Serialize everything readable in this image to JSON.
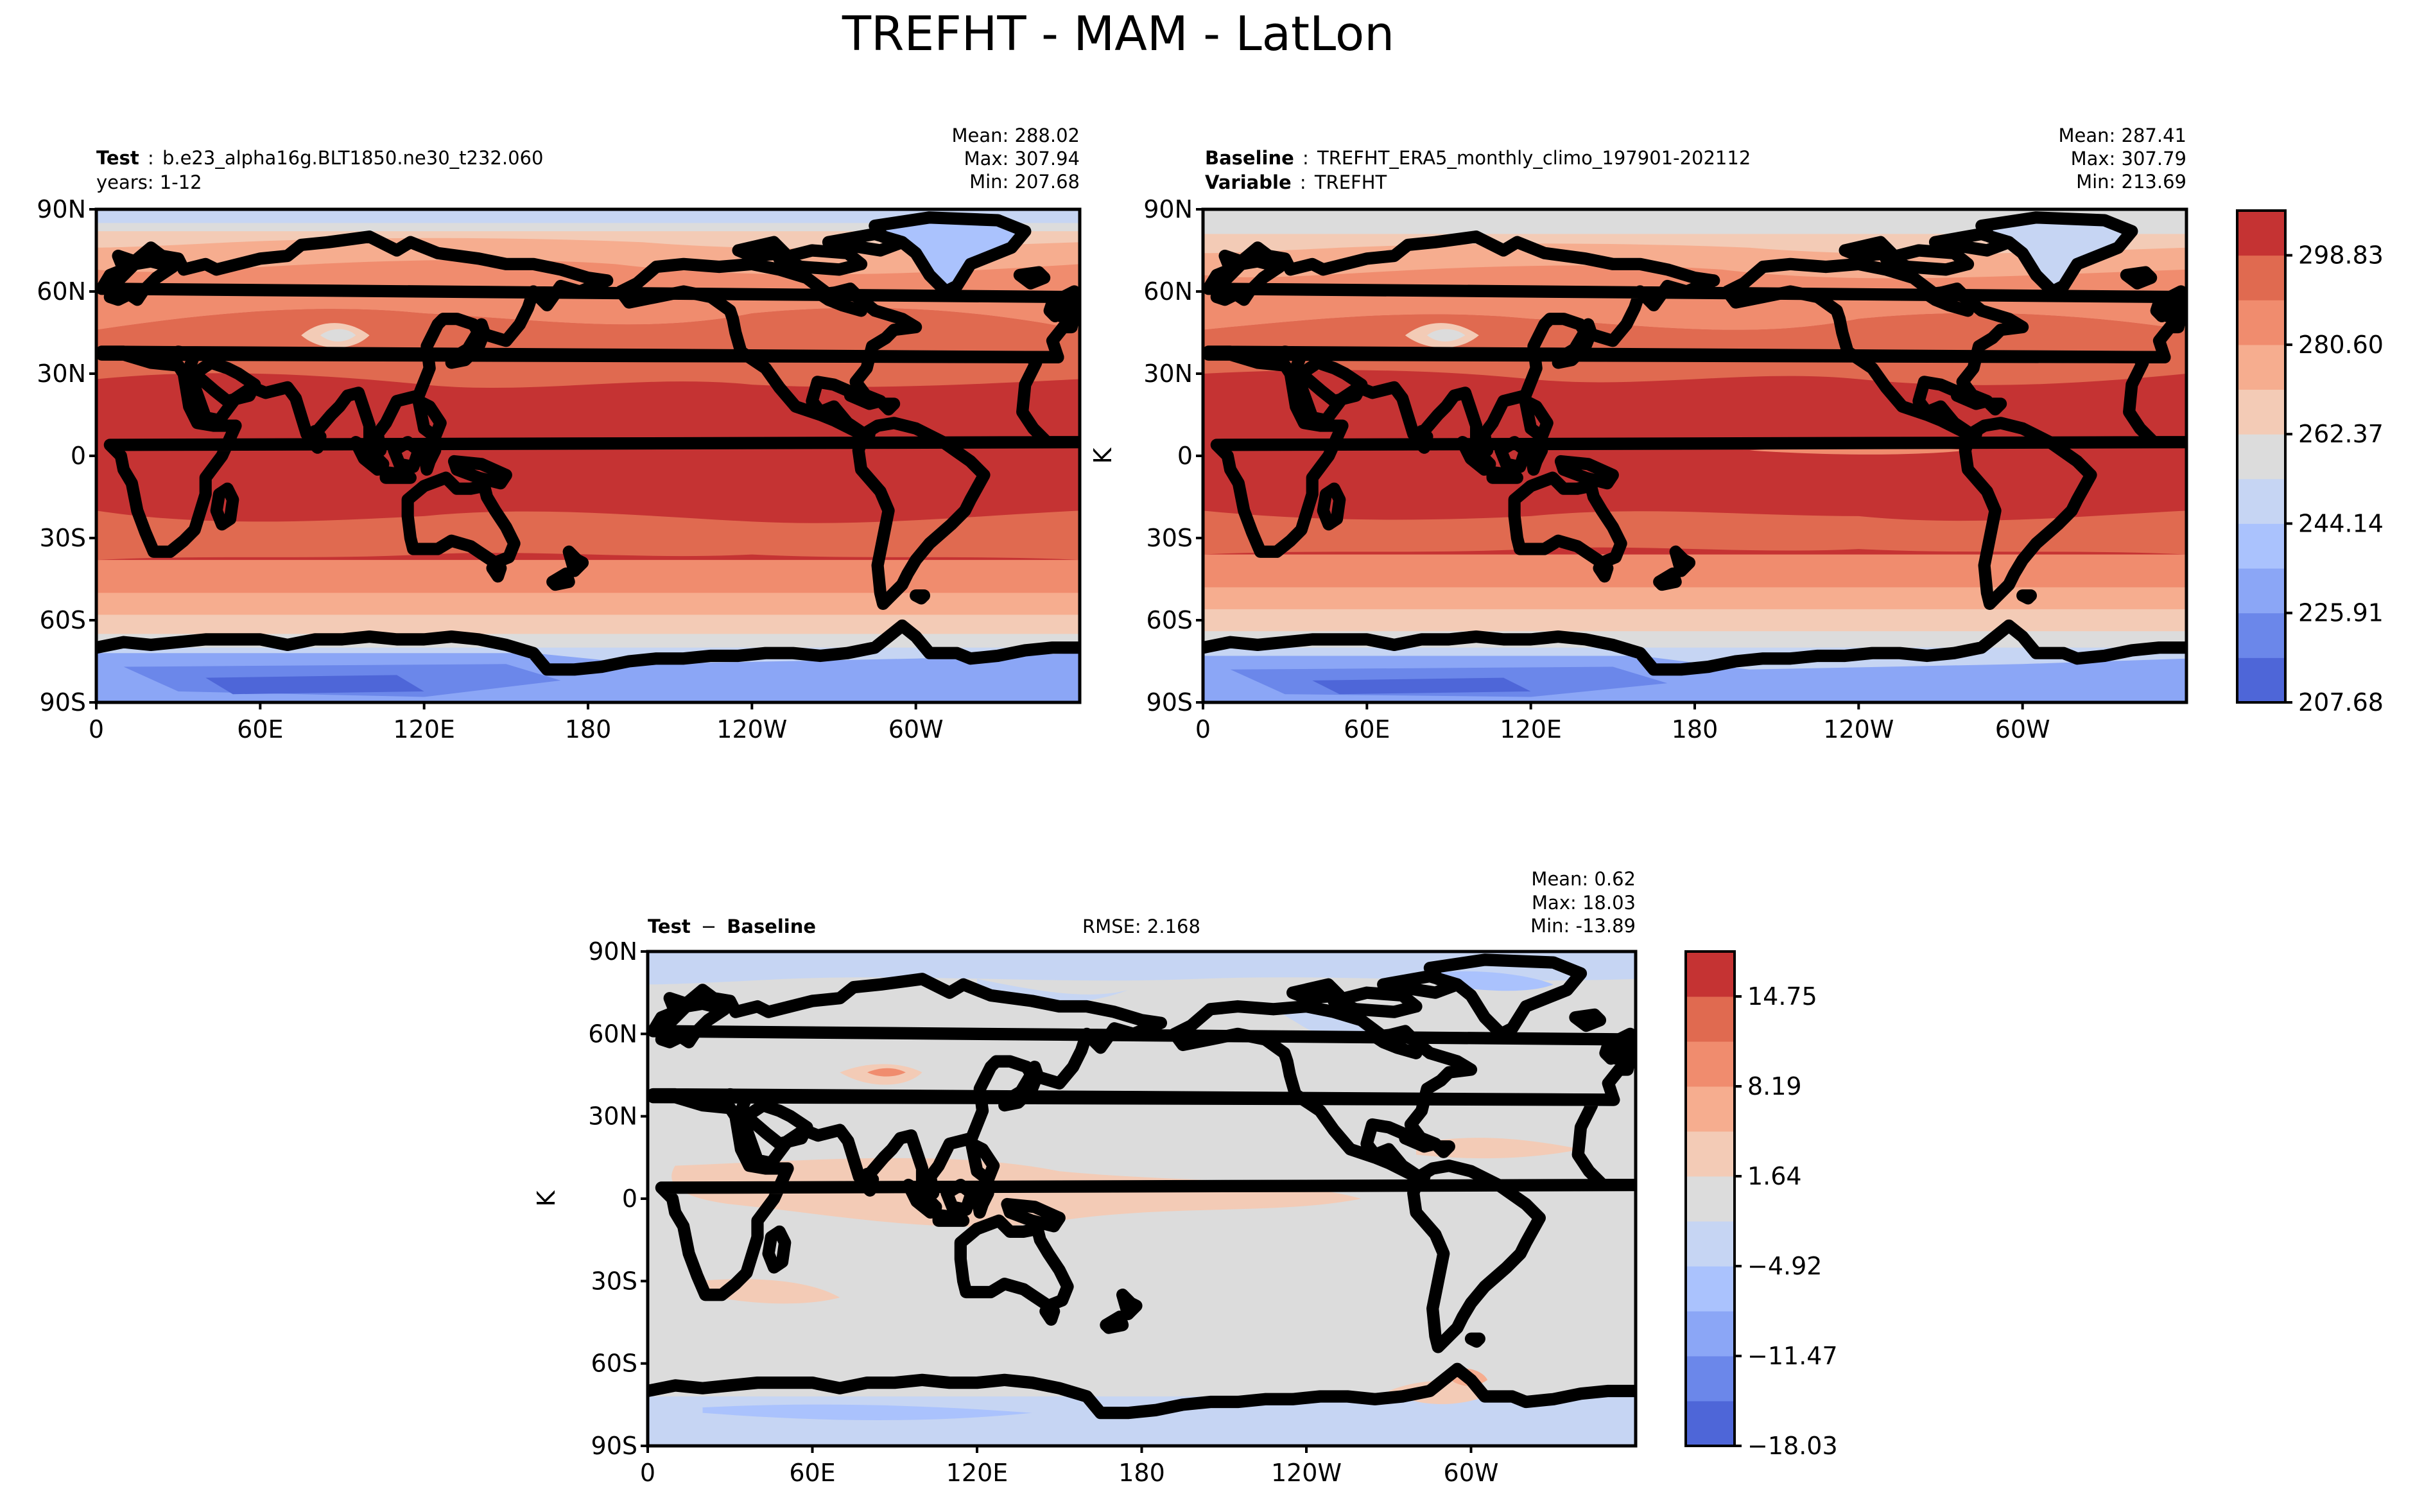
{
  "figure": {
    "title": "TREFHT - MAM - LatLon"
  },
  "axis_labels": {
    "lat_ticks": [
      "90N",
      "60N",
      "30N",
      "0",
      "30S",
      "60S",
      "90S"
    ],
    "lon_ticks": [
      "0",
      "60E",
      "120E",
      "180",
      "120W",
      "60W"
    ],
    "units": "K"
  },
  "panels": {
    "test": {
      "label_bold": "Test",
      "label_sep": ":",
      "label_value": "b.e23_alpha16g.BLT1850.ne30_t232.060",
      "line2": "years: 1-12",
      "mean": "Mean: 288.02",
      "max": "Max: 307.94",
      "min": "Min: 207.68"
    },
    "baseline": {
      "label_bold": "Baseline",
      "label_sep": ":",
      "label_value": "TREFHT_ERA5_monthly_climo_197901-202112",
      "line2_bold": "Variable",
      "line2_sep": ":",
      "line2_value": "TREFHT",
      "mean": "Mean: 287.41",
      "max": "Max: 307.79",
      "min": "Min: 213.69"
    },
    "diff": {
      "label_a": "Test",
      "label_op": "−",
      "label_b": "Baseline",
      "rmse": "RMSE: 2.168",
      "mean": "Mean:  0.62",
      "max": "Max: 18.03",
      "min": "Min: -13.89"
    }
  },
  "colorbars": {
    "top": {
      "tick_labels": [
        "298.83",
        "280.60",
        "262.37",
        "244.14",
        "225.91",
        "207.68"
      ],
      "colors": [
        "#4e66d8",
        "#6b87ea",
        "#8ba6f6",
        "#aac2fd",
        "#c6d5f3",
        "#dcdcdc",
        "#f3cbb6",
        "#f6ad8f",
        "#f08c6e",
        "#e06a50",
        "#c53333"
      ]
    },
    "diff": {
      "tick_labels": [
        "14.75",
        "8.19",
        "1.64",
        "−4.92",
        "−11.47",
        "−18.03"
      ],
      "colors": [
        "#4e66d8",
        "#6b87ea",
        "#8ba6f6",
        "#aac2fd",
        "#c6d5f3",
        "#dcdcdc",
        "#f3cbb6",
        "#f6ad8f",
        "#f08c6e",
        "#e06a50",
        "#c53333"
      ]
    }
  }
}
